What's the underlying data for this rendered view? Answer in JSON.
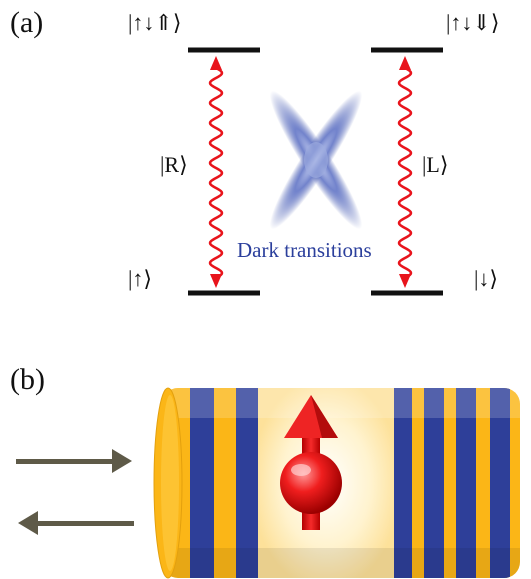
{
  "panel_a": {
    "label": "(a)",
    "state_top_left": "|↑↓⇑⟩",
    "state_top_right": "|↑↓⇓⟩",
    "state_bottom_left": "|↑⟩",
    "state_bottom_right": "|↓⟩",
    "transition_left": "|R⟩",
    "transition_right": "|L⟩",
    "dark_transitions": "Dark transitions"
  },
  "panel_b": {
    "label": "(b)"
  },
  "colors": {
    "level": "#111111",
    "transition": "#e8141c",
    "dark_cross": "#4a5fb8",
    "dark_text": "#2b3f9c",
    "stripe_yellow": "#fbb617",
    "stripe_blue": "#2e3f99",
    "arrow": "#5e5a48",
    "spin_red": "#e31b1b"
  }
}
